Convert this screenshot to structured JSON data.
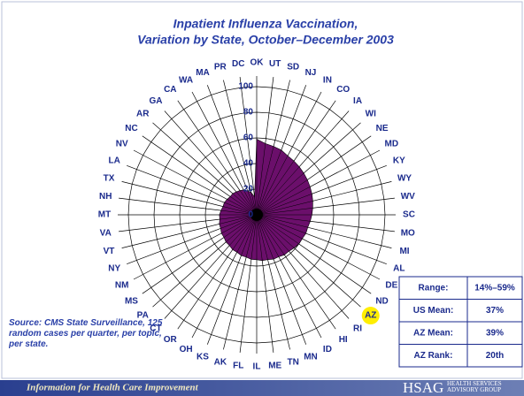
{
  "chart_data": {
    "type": "radar",
    "title": "Inpatient Influenza Vaccination,",
    "subtitle": "Variation by State, October–December 2003",
    "categories": [
      "OK",
      "UT",
      "SD",
      "NJ",
      "IN",
      "CO",
      "IA",
      "WI",
      "NE",
      "MD",
      "KY",
      "WY",
      "WV",
      "SC",
      "MO",
      "MI",
      "AL",
      "DE",
      "ND",
      "AZ",
      "RI",
      "HI",
      "ID",
      "MN",
      "TN",
      "ME",
      "IL",
      "FL",
      "AK",
      "KS",
      "OH",
      "OR",
      "CT",
      "PA",
      "MS",
      "NM",
      "NY",
      "VT",
      "VA",
      "MT",
      "NH",
      "TX",
      "LA",
      "NV",
      "NC",
      "AR",
      "GA",
      "CA",
      "WA",
      "MA",
      "PR",
      "DC"
    ],
    "values": [
      59,
      56,
      55,
      54,
      52,
      51,
      50,
      49,
      48,
      47,
      46,
      45,
      44,
      43,
      42,
      41,
      41,
      40,
      40,
      39,
      38,
      38,
      37,
      37,
      36,
      36,
      35,
      35,
      34,
      34,
      33,
      33,
      32,
      32,
      31,
      31,
      30,
      30,
      29,
      29,
      28,
      27,
      27,
      26,
      25,
      25,
      24,
      23,
      22,
      20,
      18,
      14
    ],
    "color": "#6b0f6b",
    "highlight": "AZ",
    "ylim": [
      0,
      100
    ],
    "yticks": [
      0,
      20,
      40,
      60,
      80,
      100
    ],
    "grid": true
  },
  "source": "Source: CMS State Surveillance, 125 random cases per quarter, per topic, per state.",
  "table": {
    "rows": [
      [
        "Range:",
        "14%–59%"
      ],
      [
        "US Mean:",
        "37%"
      ],
      [
        "AZ Mean:",
        "39%"
      ],
      [
        "AZ Rank:",
        "20th"
      ]
    ]
  },
  "footer": {
    "tagline": "Information for Health Care Improvement",
    "logo": "HSAG",
    "logo_text": "HEALTH SERVICES ADVISORY GROUP"
  }
}
